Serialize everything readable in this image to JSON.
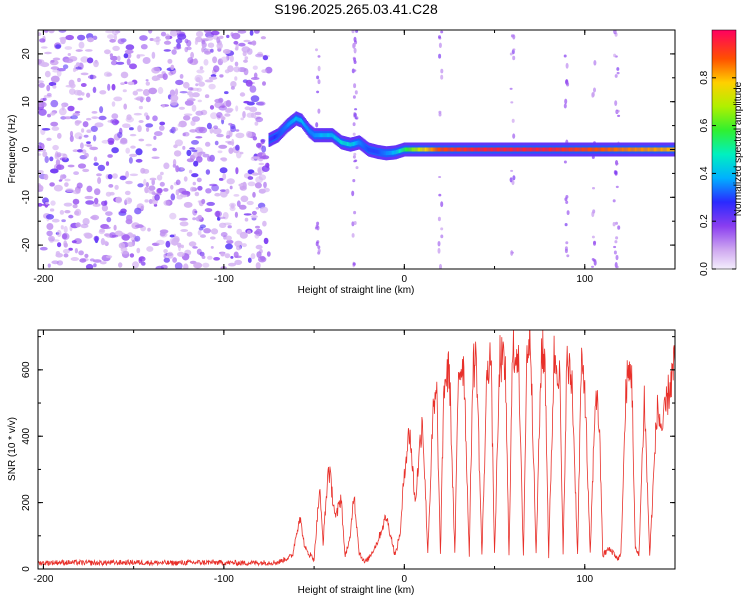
{
  "title": "S196.2025.265.03.41.C28",
  "chart_data": [
    {
      "type": "heatmap",
      "xlabel": "Height of straight line (km)",
      "ylabel": "Frequency (Hz)",
      "xlim": [
        -203,
        150
      ],
      "ylim": [
        -25,
        25
      ],
      "xticks": [
        -200,
        -100,
        0,
        100
      ],
      "yticks": [
        -20,
        -10,
        0,
        10,
        20
      ],
      "noise_region_x": [
        -203,
        -75
      ],
      "signal_ridge": {
        "x": [
          -75,
          -70,
          -65,
          -60,
          -57,
          -53,
          -50,
          -45,
          -40,
          -35,
          -30,
          -25,
          -20,
          -15,
          -10,
          -5,
          0,
          10,
          20,
          40,
          60,
          80,
          100,
          120,
          150
        ],
        "freq_hz": [
          2,
          3,
          5,
          6.5,
          6,
          4,
          3,
          3,
          3,
          1.5,
          1,
          1.5,
          0,
          -0.5,
          -0.8,
          -0.6,
          0,
          0,
          0,
          0,
          0,
          0,
          0,
          0,
          0
        ],
        "amplitude": [
          0.25,
          0.3,
          0.35,
          0.4,
          0.4,
          0.35,
          0.35,
          0.4,
          0.4,
          0.45,
          0.45,
          0.35,
          0.3,
          0.3,
          0.35,
          0.4,
          0.55,
          0.75,
          0.9,
          0.95,
          0.95,
          0.95,
          0.9,
          0.85,
          0.8
        ]
      },
      "colorbar": {
        "label": "Normalized spectral amplitude",
        "ticks": [
          0.0,
          0.2,
          0.4,
          0.6,
          0.8
        ],
        "tick_labels": [
          "0.0",
          "0.2",
          "0.4",
          "0.6",
          "0.8"
        ],
        "range": [
          0,
          1
        ]
      }
    },
    {
      "type": "line",
      "xlabel": "Height of straight line (km)",
      "ylabel": "SNR (10 * v/v)",
      "xlim": [
        -203,
        150
      ],
      "ylim": [
        0,
        720
      ],
      "xticks": [
        -200,
        -100,
        0,
        100
      ],
      "yticks": [
        0,
        200,
        400,
        600
      ],
      "series": [
        {
          "name": "SNR",
          "color": "#e8302a",
          "x": [
            -203,
            -190,
            -170,
            -150,
            -130,
            -110,
            -90,
            -70,
            -62,
            -58,
            -55,
            -50,
            -47,
            -45,
            -42,
            -38,
            -35,
            -33,
            -30,
            -28,
            -25,
            -22,
            -20,
            -15,
            -10,
            -5,
            -2,
            0,
            3,
            6,
            10,
            13,
            16,
            18,
            20,
            22,
            25,
            28,
            30,
            33,
            36,
            38,
            40,
            43,
            46,
            48,
            50,
            53,
            56,
            58,
            60,
            63,
            66,
            68,
            70,
            73,
            76,
            78,
            80,
            83,
            86,
            88,
            90,
            93,
            96,
            98,
            100,
            103,
            106,
            108,
            110,
            113,
            116,
            118,
            120,
            123,
            126,
            128,
            130,
            133,
            136,
            140,
            143,
            146,
            150
          ],
          "y": [
            18,
            20,
            18,
            20,
            18,
            20,
            18,
            20,
            40,
            160,
            60,
            30,
            240,
            80,
            310,
            150,
            220,
            40,
            90,
            230,
            50,
            20,
            30,
            80,
            160,
            40,
            120,
            300,
            420,
            200,
            460,
            50,
            470,
            520,
            40,
            560,
            600,
            40,
            600,
            620,
            40,
            610,
            630,
            40,
            620,
            640,
            40,
            640,
            600,
            40,
            650,
            660,
            40,
            670,
            700,
            40,
            660,
            620,
            40,
            640,
            600,
            40,
            620,
            560,
            40,
            600,
            560,
            40,
            540,
            440,
            40,
            60,
            50,
            30,
            40,
            560,
            600,
            60,
            40,
            520,
            40,
            480,
            420,
            520,
            620
          ]
        }
      ]
    }
  ]
}
